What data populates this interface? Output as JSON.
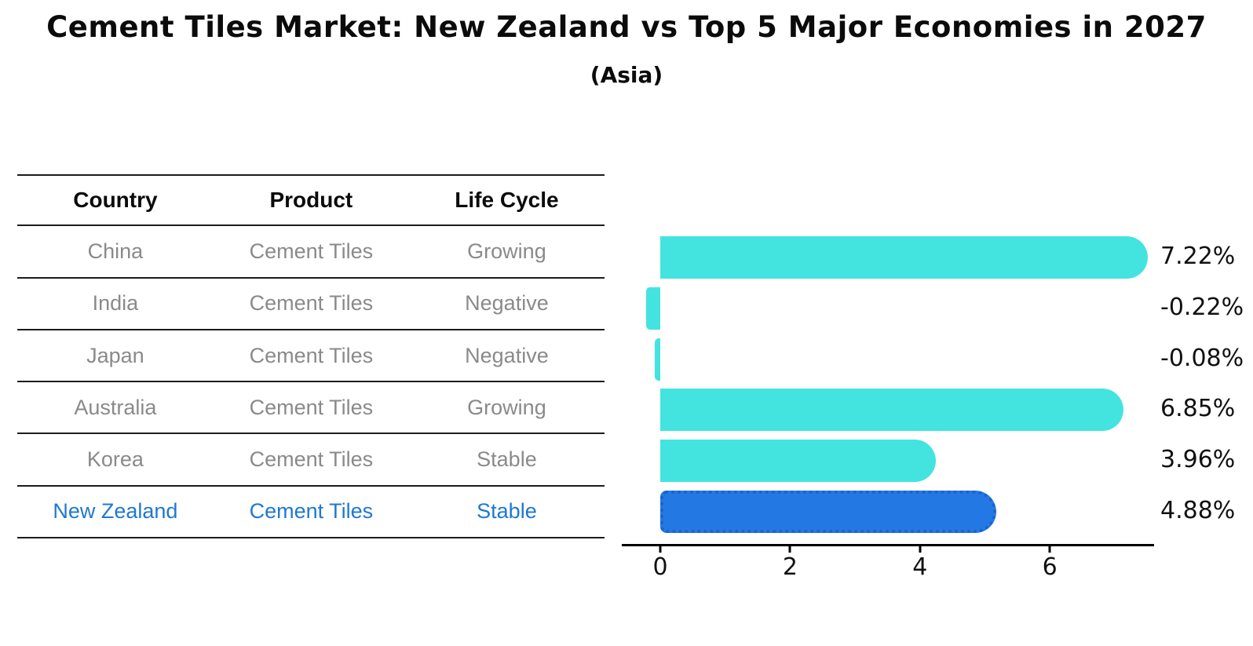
{
  "table": {
    "headers": [
      "Country",
      "Product",
      "Life Cycle"
    ],
    "rows": [
      {
        "country": "China",
        "product": "Cement Tiles",
        "life_cycle": "Growing",
        "highlighted": false
      },
      {
        "country": "India",
        "product": "Cement Tiles",
        "life_cycle": "Negative",
        "highlighted": false
      },
      {
        "country": "Japan",
        "product": "Cement Tiles",
        "life_cycle": "Negative",
        "highlighted": false
      },
      {
        "country": "Australia",
        "product": "Cement Tiles",
        "life_cycle": "Growing",
        "highlighted": false
      },
      {
        "country": "Korea",
        "product": "Cement Tiles",
        "life_cycle": "Stable",
        "highlighted": false
      },
      {
        "country": "New Zealand",
        "product": "Cement Tiles",
        "life_cycle": "Stable",
        "highlighted": true
      }
    ]
  },
  "chart_data": {
    "type": "bar",
    "orientation": "horizontal",
    "title": "Cement Tiles Market: New Zealand vs Top 5 Major Economies in 2027",
    "subtitle": "(Asia)",
    "categories": [
      "China",
      "India",
      "Japan",
      "Australia",
      "Korea",
      "New Zealand"
    ],
    "values": [
      7.22,
      -0.22,
      -0.08,
      6.85,
      3.96,
      4.88
    ],
    "value_labels": [
      "7.22%",
      "-0.22%",
      "-0.08%",
      "6.85%",
      "3.96%",
      "4.88%"
    ],
    "x_ticks": [
      "0",
      "2",
      "4",
      "6"
    ],
    "x_tick_values": [
      0,
      2,
      4,
      6
    ],
    "xlim": [
      -0.6,
      7.6
    ],
    "highlight_index": 5,
    "grid": false,
    "legend": false,
    "colors": {
      "bar": "#43E4E0",
      "highlight_bar": "#2478E4",
      "highlight_border": "#1A63CF",
      "highlight_text": "#1E78D2",
      "table_text": "#8A8A8A",
      "axis": "#000000",
      "label": "#111111"
    }
  }
}
